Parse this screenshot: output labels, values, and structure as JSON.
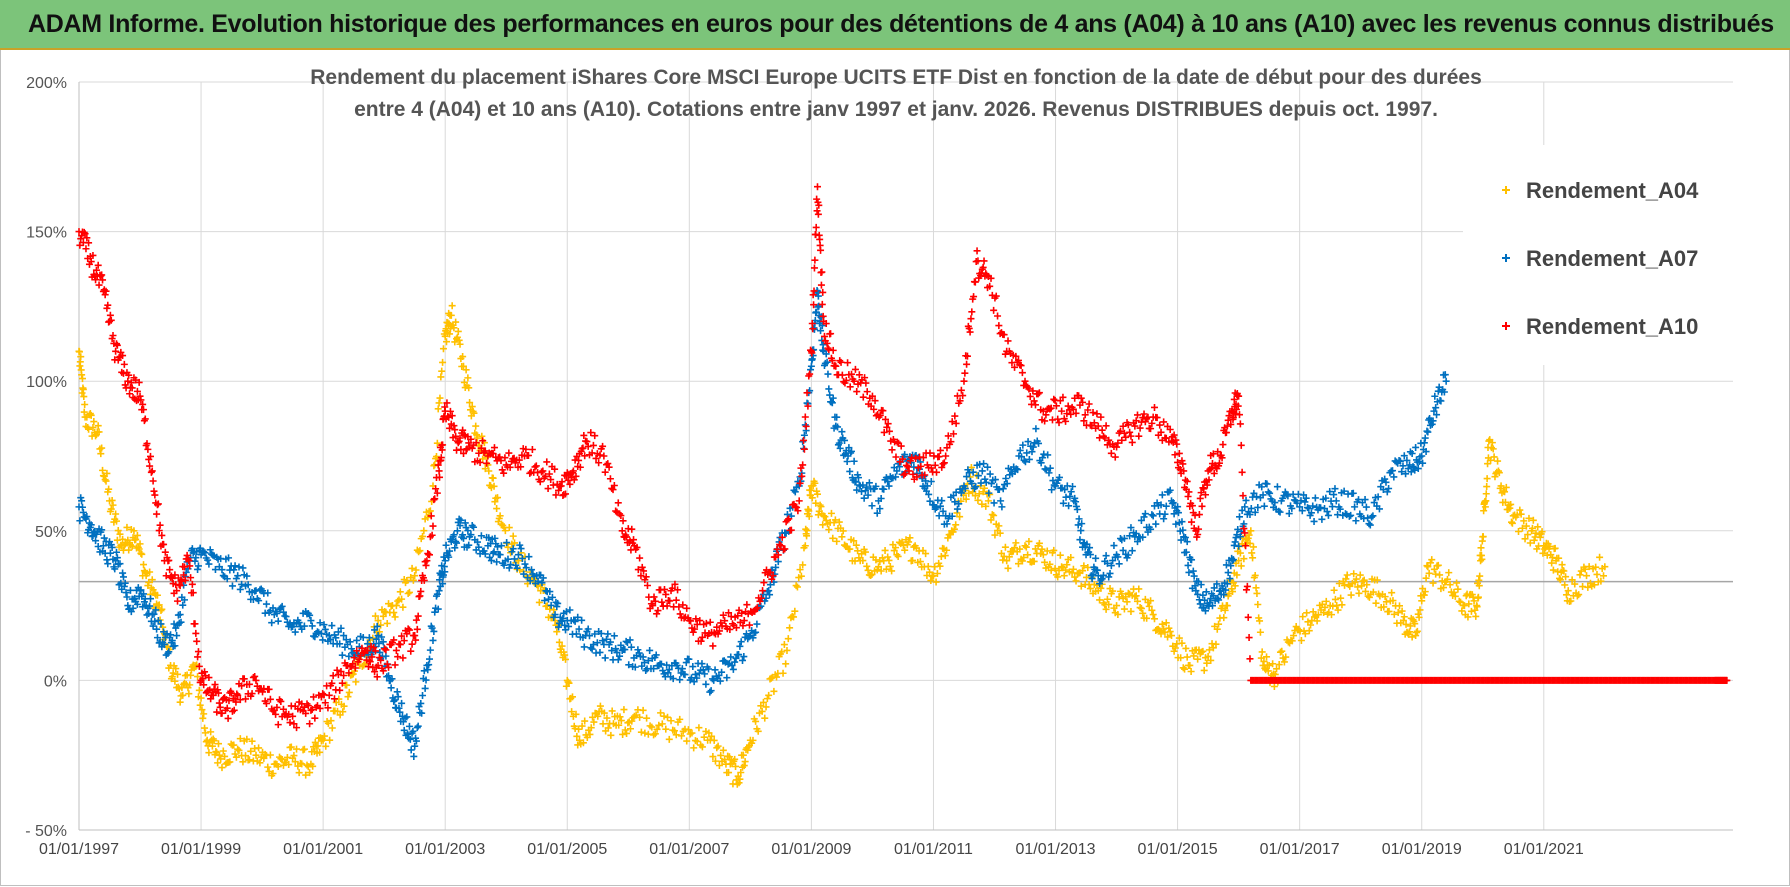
{
  "header": {
    "title": "ADAM Informe. Evolution historique des performances en euros pour des détentions de 4 ans (A04) à 10 ans (A10) avec les revenus connus distribués"
  },
  "colors": {
    "banner": "#7cc47a",
    "A04": "#ffc000",
    "A07": "#0070c0",
    "A10": "#ff0000",
    "grid": "#d9d9d9"
  },
  "chart_data": {
    "type": "scatter",
    "title_lines": [
      "Rendement du placement iShares Core MSCI  Europe UCITS ETF Dist en fonction de la date de début pour des durées",
      "entre 4 (A04) et 10 ans (A10).  Cotations entre janv 1997 et janv. 2026. Revenus DISTRIBUES depuis oct. 1997."
    ],
    "xlabel": "",
    "ylabel": "",
    "xlim": [
      1997.0,
      2024.1
    ],
    "ylim": [
      -50,
      200
    ],
    "x_ticks": [
      1997,
      1999,
      2001,
      2003,
      2005,
      2007,
      2009,
      2011,
      2013,
      2015,
      2017,
      2019,
      2021
    ],
    "x_tick_labels": [
      "01/01/1997",
      "01/01/1999",
      "01/01/2001",
      "01/01/2003",
      "01/01/2005",
      "01/01/2007",
      "01/01/2009",
      "01/01/2011",
      "01/01/2013",
      "01/01/2015",
      "01/01/2017",
      "01/01/2019",
      "01/01/2021"
    ],
    "y_ticks": [
      -50,
      0,
      50,
      100,
      150,
      200
    ],
    "y_tick_labels": [
      "- 50%",
      "0%",
      "50%",
      "100%",
      "150%",
      "200%"
    ],
    "reference_line_y": 33,
    "legend_position": "right",
    "series": [
      {
        "name": "Rendement_A04",
        "key": "A04",
        "points": [
          [
            1997.0,
            110
          ],
          [
            1997.1,
            88
          ],
          [
            1997.3,
            83
          ],
          [
            1997.5,
            60
          ],
          [
            1997.7,
            45
          ],
          [
            1997.9,
            50
          ],
          [
            1998.1,
            35
          ],
          [
            1998.3,
            25
          ],
          [
            1998.5,
            5
          ],
          [
            1998.7,
            -5
          ],
          [
            1998.9,
            5
          ],
          [
            1999.1,
            -20
          ],
          [
            1999.3,
            -25
          ],
          [
            1999.6,
            -23
          ],
          [
            1999.9,
            -25
          ],
          [
            2000.2,
            -28
          ],
          [
            2000.5,
            -26
          ],
          [
            2000.8,
            -28
          ],
          [
            2001.0,
            -20
          ],
          [
            2001.3,
            -8
          ],
          [
            2001.6,
            5
          ],
          [
            2001.9,
            20
          ],
          [
            2002.2,
            25
          ],
          [
            2002.5,
            35
          ],
          [
            2002.8,
            65
          ],
          [
            2003.0,
            115
          ],
          [
            2003.1,
            122
          ],
          [
            2003.3,
            105
          ],
          [
            2003.5,
            85
          ],
          [
            2003.7,
            72
          ],
          [
            2003.9,
            55
          ],
          [
            2004.2,
            40
          ],
          [
            2004.5,
            32
          ],
          [
            2004.8,
            20
          ],
          [
            2005.0,
            0
          ],
          [
            2005.2,
            -20
          ],
          [
            2005.5,
            -12
          ],
          [
            2005.8,
            -15
          ],
          [
            2006.1,
            -12
          ],
          [
            2006.5,
            -15
          ],
          [
            2006.9,
            -17
          ],
          [
            2007.3,
            -20
          ],
          [
            2007.6,
            -28
          ],
          [
            2007.8,
            -32
          ],
          [
            2008.0,
            -20
          ],
          [
            2008.3,
            -5
          ],
          [
            2008.6,
            10
          ],
          [
            2008.9,
            45
          ],
          [
            2009.0,
            65
          ],
          [
            2009.2,
            55
          ],
          [
            2009.5,
            48
          ],
          [
            2009.8,
            40
          ],
          [
            2010.1,
            38
          ],
          [
            2010.4,
            42
          ],
          [
            2010.7,
            45
          ],
          [
            2011.0,
            35
          ],
          [
            2011.3,
            50
          ],
          [
            2011.6,
            68
          ],
          [
            2011.9,
            60
          ],
          [
            2012.2,
            40
          ],
          [
            2012.5,
            45
          ],
          [
            2012.8,
            42
          ],
          [
            2013.1,
            38
          ],
          [
            2013.4,
            36
          ],
          [
            2013.7,
            30
          ],
          [
            2014.0,
            25
          ],
          [
            2014.3,
            28
          ],
          [
            2014.6,
            22
          ],
          [
            2014.9,
            15
          ],
          [
            2015.2,
            5
          ],
          [
            2015.5,
            8
          ],
          [
            2015.8,
            25
          ],
          [
            2016.0,
            40
          ],
          [
            2016.2,
            50
          ],
          [
            2016.4,
            5
          ],
          [
            2016.6,
            2
          ],
          [
            2016.9,
            15
          ],
          [
            2017.2,
            20
          ],
          [
            2017.5,
            25
          ],
          [
            2017.8,
            32
          ],
          [
            2018.1,
            32
          ],
          [
            2018.4,
            28
          ],
          [
            2018.7,
            20
          ],
          [
            2018.9,
            15
          ],
          [
            2019.1,
            38
          ],
          [
            2019.4,
            33
          ],
          [
            2019.7,
            25
          ],
          [
            2019.9,
            25
          ],
          [
            2020.0,
            48
          ],
          [
            2020.1,
            80
          ],
          [
            2020.3,
            65
          ],
          [
            2020.5,
            55
          ],
          [
            2020.8,
            50
          ],
          [
            2021.0,
            45
          ],
          [
            2021.2,
            40
          ],
          [
            2021.4,
            30
          ],
          [
            2021.7,
            35
          ],
          [
            2022.0,
            38
          ]
        ]
      },
      {
        "name": "Rendement_A07",
        "key": "A07",
        "points": [
          [
            1997.0,
            58
          ],
          [
            1997.2,
            52
          ],
          [
            1997.4,
            45
          ],
          [
            1997.6,
            40
          ],
          [
            1997.8,
            25
          ],
          [
            1998.0,
            30
          ],
          [
            1998.2,
            22
          ],
          [
            1998.4,
            12
          ],
          [
            1998.6,
            15
          ],
          [
            1998.8,
            40
          ],
          [
            1999.0,
            42
          ],
          [
            1999.3,
            38
          ],
          [
            1999.6,
            35
          ],
          [
            1999.9,
            30
          ],
          [
            2000.2,
            22
          ],
          [
            2000.5,
            18
          ],
          [
            2000.8,
            20
          ],
          [
            2001.1,
            15
          ],
          [
            2001.4,
            12
          ],
          [
            2001.7,
            10
          ],
          [
            2001.9,
            15
          ],
          [
            2002.1,
            0
          ],
          [
            2002.3,
            -12
          ],
          [
            2002.5,
            -22
          ],
          [
            2002.7,
            5
          ],
          [
            2002.9,
            30
          ],
          [
            2003.0,
            40
          ],
          [
            2003.2,
            50
          ],
          [
            2003.4,
            48
          ],
          [
            2003.7,
            45
          ],
          [
            2003.9,
            42
          ],
          [
            2004.2,
            42
          ],
          [
            2004.5,
            35
          ],
          [
            2004.8,
            22
          ],
          [
            2005.0,
            20
          ],
          [
            2005.3,
            15
          ],
          [
            2005.6,
            12
          ],
          [
            2005.9,
            10
          ],
          [
            2006.2,
            8
          ],
          [
            2006.5,
            5
          ],
          [
            2006.8,
            5
          ],
          [
            2007.1,
            2
          ],
          [
            2007.4,
            0
          ],
          [
            2007.7,
            5
          ],
          [
            2008.0,
            15
          ],
          [
            2008.3,
            30
          ],
          [
            2008.5,
            45
          ],
          [
            2008.8,
            65
          ],
          [
            2009.0,
            105
          ],
          [
            2009.1,
            130
          ],
          [
            2009.2,
            110
          ],
          [
            2009.4,
            85
          ],
          [
            2009.6,
            75
          ],
          [
            2009.8,
            65
          ],
          [
            2010.1,
            60
          ],
          [
            2010.4,
            70
          ],
          [
            2010.7,
            75
          ],
          [
            2010.9,
            65
          ],
          [
            2011.2,
            55
          ],
          [
            2011.5,
            65
          ],
          [
            2011.8,
            70
          ],
          [
            2012.1,
            60
          ],
          [
            2012.4,
            75
          ],
          [
            2012.7,
            80
          ],
          [
            2013.0,
            65
          ],
          [
            2013.3,
            60
          ],
          [
            2013.5,
            42
          ],
          [
            2013.7,
            35
          ],
          [
            2014.0,
            42
          ],
          [
            2014.3,
            48
          ],
          [
            2014.6,
            55
          ],
          [
            2014.9,
            60
          ],
          [
            2015.1,
            48
          ],
          [
            2015.3,
            30
          ],
          [
            2015.5,
            25
          ],
          [
            2015.7,
            30
          ],
          [
            2015.9,
            40
          ],
          [
            2016.1,
            58
          ],
          [
            2016.4,
            62
          ],
          [
            2016.7,
            60
          ],
          [
            2017.0,
            58
          ],
          [
            2017.3,
            57
          ],
          [
            2017.6,
            60
          ],
          [
            2017.9,
            58
          ],
          [
            2018.2,
            55
          ],
          [
            2018.5,
            70
          ],
          [
            2018.8,
            72
          ],
          [
            2019.0,
            75
          ],
          [
            2019.2,
            90
          ],
          [
            2019.4,
            100
          ]
        ]
      },
      {
        "name": "Rendement_A10",
        "key": "A10",
        "points": [
          [
            1997.0,
            150
          ],
          [
            1997.2,
            140
          ],
          [
            1997.4,
            130
          ],
          [
            1997.6,
            110
          ],
          [
            1997.8,
            100
          ],
          [
            1998.0,
            95
          ],
          [
            1998.2,
            70
          ],
          [
            1998.4,
            40
          ],
          [
            1998.6,
            30
          ],
          [
            1998.8,
            40
          ],
          [
            1999.0,
            0
          ],
          [
            1999.2,
            -5
          ],
          [
            1999.4,
            -10
          ],
          [
            1999.6,
            -5
          ],
          [
            1999.9,
            0
          ],
          [
            2000.2,
            -10
          ],
          [
            2000.5,
            -12
          ],
          [
            2000.8,
            -10
          ],
          [
            2001.1,
            -5
          ],
          [
            2001.4,
            5
          ],
          [
            2001.7,
            10
          ],
          [
            2001.9,
            5
          ],
          [
            2002.2,
            10
          ],
          [
            2002.5,
            15
          ],
          [
            2002.7,
            40
          ],
          [
            2002.9,
            70
          ],
          [
            2003.0,
            90
          ],
          [
            2003.2,
            80
          ],
          [
            2003.4,
            78
          ],
          [
            2003.7,
            75
          ],
          [
            2004.0,
            72
          ],
          [
            2004.3,
            75
          ],
          [
            2004.6,
            70
          ],
          [
            2004.9,
            65
          ],
          [
            2005.1,
            70
          ],
          [
            2005.3,
            80
          ],
          [
            2005.6,
            75
          ],
          [
            2005.9,
            50
          ],
          [
            2006.1,
            45
          ],
          [
            2006.4,
            25
          ],
          [
            2006.7,
            30
          ],
          [
            2007.0,
            20
          ],
          [
            2007.3,
            15
          ],
          [
            2007.6,
            18
          ],
          [
            2007.9,
            20
          ],
          [
            2008.2,
            30
          ],
          [
            2008.5,
            45
          ],
          [
            2008.8,
            60
          ],
          [
            2009.0,
            110
          ],
          [
            2009.1,
            165
          ],
          [
            2009.2,
            120
          ],
          [
            2009.4,
            105
          ],
          [
            2009.7,
            100
          ],
          [
            2010.0,
            95
          ],
          [
            2010.3,
            80
          ],
          [
            2010.6,
            70
          ],
          [
            2010.9,
            72
          ],
          [
            2011.2,
            75
          ],
          [
            2011.5,
            100
          ],
          [
            2011.7,
            140
          ],
          [
            2011.9,
            135
          ],
          [
            2012.2,
            110
          ],
          [
            2012.5,
            100
          ],
          [
            2012.8,
            90
          ],
          [
            2013.1,
            90
          ],
          [
            2013.4,
            92
          ],
          [
            2013.7,
            85
          ],
          [
            2014.0,
            78
          ],
          [
            2014.3,
            85
          ],
          [
            2014.6,
            88
          ],
          [
            2014.9,
            80
          ],
          [
            2015.1,
            70
          ],
          [
            2015.3,
            50
          ],
          [
            2015.5,
            70
          ],
          [
            2015.7,
            75
          ],
          [
            2015.9,
            90
          ],
          [
            2016.0,
            95
          ],
          [
            2016.2,
            0
          ],
          [
            2016.6,
            0
          ],
          [
            2017.0,
            0
          ],
          [
            2017.4,
            0
          ],
          [
            2017.8,
            0
          ],
          [
            2018.2,
            0
          ],
          [
            2018.6,
            0
          ],
          [
            2019.0,
            0
          ],
          [
            2019.4,
            0
          ],
          [
            2019.8,
            0
          ],
          [
            2020.2,
            0
          ],
          [
            2020.6,
            0
          ],
          [
            2021.0,
            0
          ],
          [
            2021.4,
            0
          ],
          [
            2021.8,
            0
          ],
          [
            2022.2,
            0
          ],
          [
            2022.6,
            0
          ],
          [
            2023.0,
            0
          ],
          [
            2023.4,
            0
          ],
          [
            2023.8,
            0
          ],
          [
            2024.0,
            0
          ]
        ]
      }
    ]
  }
}
